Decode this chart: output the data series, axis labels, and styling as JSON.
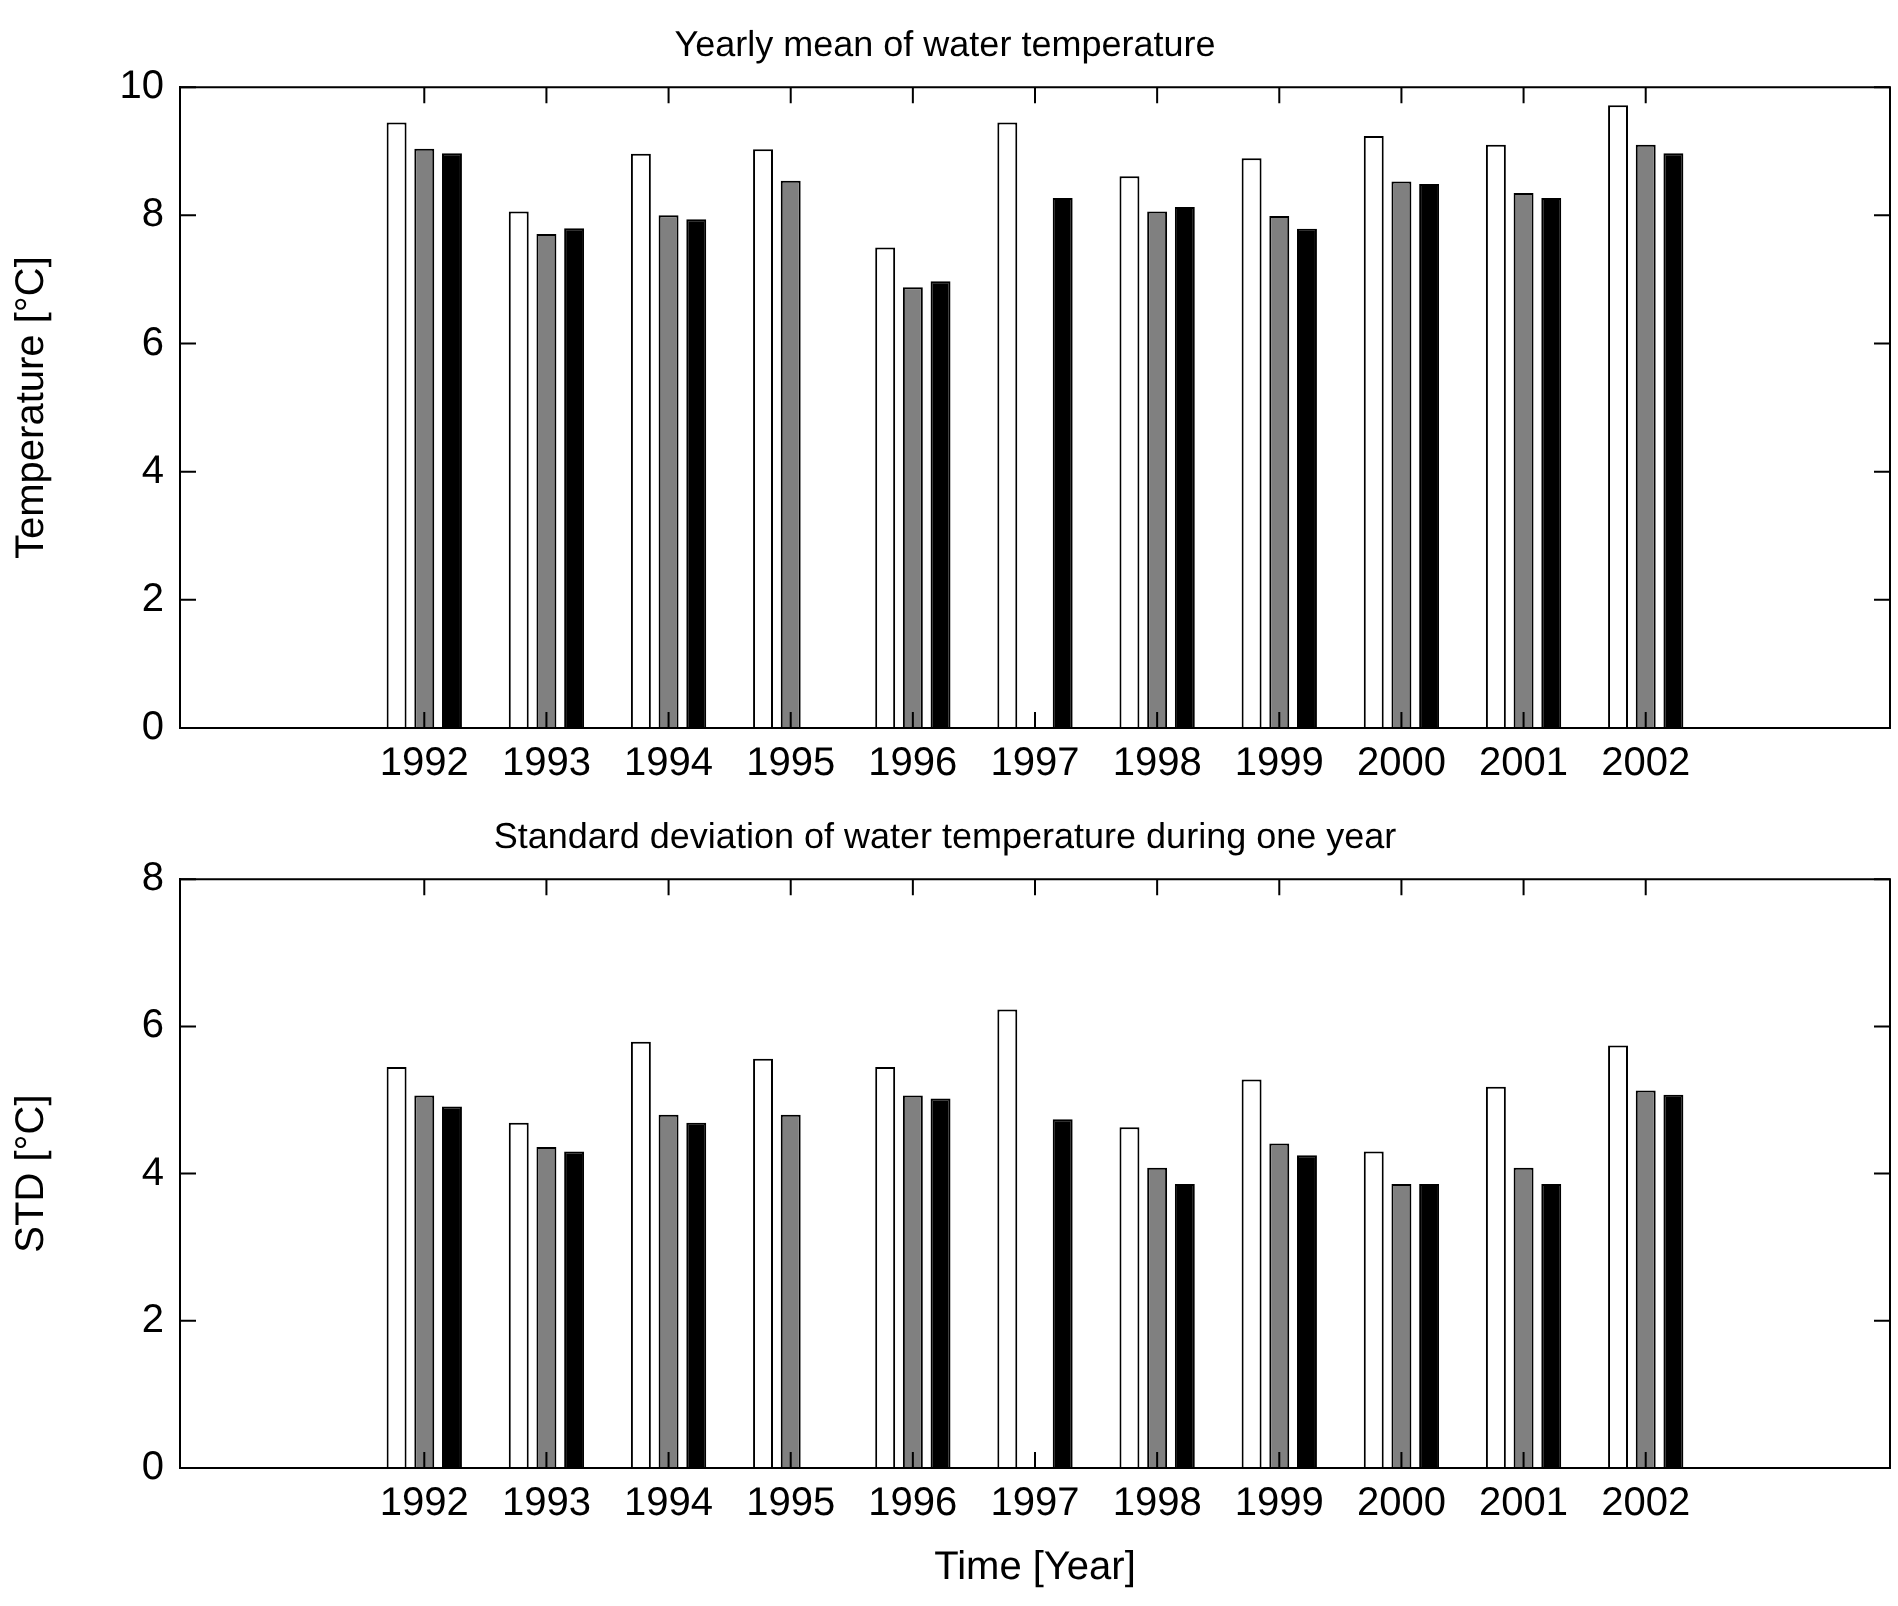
{
  "chart_data": [
    {
      "type": "bar",
      "title": "Yearly mean of water temperature",
      "ylabel": "Temperature [°C]",
      "x": [
        1992,
        1993,
        1994,
        1995,
        1996,
        1997,
        1998,
        1999,
        2000,
        2001,
        2002
      ],
      "xlim": [
        1990,
        2004
      ],
      "xticks": [
        1992,
        1993,
        1994,
        1995,
        1996,
        1997,
        1998,
        1999,
        2000,
        2001,
        2002
      ],
      "ylim": [
        0,
        10
      ],
      "yticks": [
        0,
        2,
        4,
        6,
        8,
        10
      ],
      "series": [
        {
          "color": "#ffffff",
          "values": [
            9.45,
            8.06,
            8.96,
            9.03,
            7.5,
            9.45,
            8.61,
            8.89,
            9.24,
            9.1,
            9.72
          ]
        },
        {
          "color": "#808080",
          "values": [
            9.04,
            7.71,
            8.0,
            8.54,
            6.88,
            null,
            8.06,
            7.99,
            8.53,
            8.35,
            9.1
          ]
        },
        {
          "color": "#000000",
          "values": [
            8.97,
            7.8,
            7.94,
            null,
            6.97,
            8.27,
            8.13,
            7.79,
            8.49,
            8.27,
            8.97
          ]
        }
      ]
    },
    {
      "type": "bar",
      "title": "Standard deviation of water temperature during one year",
      "xlabel": "Time [Year]",
      "ylabel": "STD [°C]",
      "x": [
        1992,
        1993,
        1994,
        1995,
        1996,
        1997,
        1998,
        1999,
        2000,
        2001,
        2002
      ],
      "xlim": [
        1990,
        2004
      ],
      "xticks": [
        1992,
        1993,
        1994,
        1995,
        1996,
        1997,
        1998,
        1999,
        2000,
        2001,
        2002
      ],
      "ylim": [
        0,
        8
      ],
      "yticks": [
        0,
        2,
        4,
        6,
        8
      ],
      "series": [
        {
          "color": "#ffffff",
          "values": [
            5.45,
            4.69,
            5.79,
            5.56,
            5.45,
            6.23,
            4.63,
            5.28,
            4.3,
            5.18,
            5.74
          ]
        },
        {
          "color": "#808080",
          "values": [
            5.06,
            4.36,
            4.8,
            4.8,
            5.06,
            null,
            4.08,
            4.41,
            3.86,
            4.08,
            5.13
          ]
        },
        {
          "color": "#000000",
          "values": [
            4.91,
            4.3,
            4.69,
            null,
            5.02,
            4.74,
            3.86,
            4.25,
            3.86,
            3.86,
            5.07
          ]
        }
      ]
    }
  ]
}
